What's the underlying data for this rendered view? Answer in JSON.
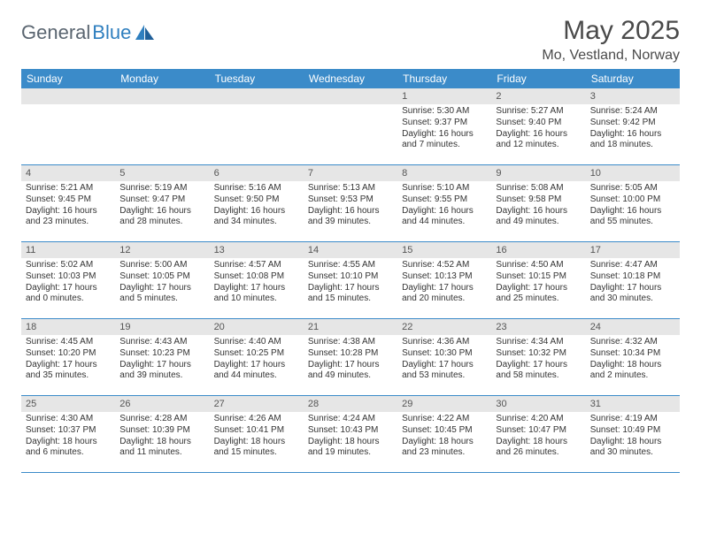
{
  "logo": {
    "text_a": "General",
    "text_b": "Blue"
  },
  "title": "May 2025",
  "location": "Mo, Vestland, Norway",
  "colors": {
    "header_bar": "#3b8bc9",
    "day_num_bg": "#e6e6e6",
    "text": "#333333",
    "logo_gray": "#5a6570",
    "logo_blue": "#2f7fbf"
  },
  "day_names": [
    "Sunday",
    "Monday",
    "Tuesday",
    "Wednesday",
    "Thursday",
    "Friday",
    "Saturday"
  ],
  "weeks": [
    [
      {
        "n": "",
        "sr": "",
        "ss": "",
        "dl": ""
      },
      {
        "n": "",
        "sr": "",
        "ss": "",
        "dl": ""
      },
      {
        "n": "",
        "sr": "",
        "ss": "",
        "dl": ""
      },
      {
        "n": "",
        "sr": "",
        "ss": "",
        "dl": ""
      },
      {
        "n": "1",
        "sr": "Sunrise: 5:30 AM",
        "ss": "Sunset: 9:37 PM",
        "dl": "Daylight: 16 hours and 7 minutes."
      },
      {
        "n": "2",
        "sr": "Sunrise: 5:27 AM",
        "ss": "Sunset: 9:40 PM",
        "dl": "Daylight: 16 hours and 12 minutes."
      },
      {
        "n": "3",
        "sr": "Sunrise: 5:24 AM",
        "ss": "Sunset: 9:42 PM",
        "dl": "Daylight: 16 hours and 18 minutes."
      }
    ],
    [
      {
        "n": "4",
        "sr": "Sunrise: 5:21 AM",
        "ss": "Sunset: 9:45 PM",
        "dl": "Daylight: 16 hours and 23 minutes."
      },
      {
        "n": "5",
        "sr": "Sunrise: 5:19 AM",
        "ss": "Sunset: 9:47 PM",
        "dl": "Daylight: 16 hours and 28 minutes."
      },
      {
        "n": "6",
        "sr": "Sunrise: 5:16 AM",
        "ss": "Sunset: 9:50 PM",
        "dl": "Daylight: 16 hours and 34 minutes."
      },
      {
        "n": "7",
        "sr": "Sunrise: 5:13 AM",
        "ss": "Sunset: 9:53 PM",
        "dl": "Daylight: 16 hours and 39 minutes."
      },
      {
        "n": "8",
        "sr": "Sunrise: 5:10 AM",
        "ss": "Sunset: 9:55 PM",
        "dl": "Daylight: 16 hours and 44 minutes."
      },
      {
        "n": "9",
        "sr": "Sunrise: 5:08 AM",
        "ss": "Sunset: 9:58 PM",
        "dl": "Daylight: 16 hours and 49 minutes."
      },
      {
        "n": "10",
        "sr": "Sunrise: 5:05 AM",
        "ss": "Sunset: 10:00 PM",
        "dl": "Daylight: 16 hours and 55 minutes."
      }
    ],
    [
      {
        "n": "11",
        "sr": "Sunrise: 5:02 AM",
        "ss": "Sunset: 10:03 PM",
        "dl": "Daylight: 17 hours and 0 minutes."
      },
      {
        "n": "12",
        "sr": "Sunrise: 5:00 AM",
        "ss": "Sunset: 10:05 PM",
        "dl": "Daylight: 17 hours and 5 minutes."
      },
      {
        "n": "13",
        "sr": "Sunrise: 4:57 AM",
        "ss": "Sunset: 10:08 PM",
        "dl": "Daylight: 17 hours and 10 minutes."
      },
      {
        "n": "14",
        "sr": "Sunrise: 4:55 AM",
        "ss": "Sunset: 10:10 PM",
        "dl": "Daylight: 17 hours and 15 minutes."
      },
      {
        "n": "15",
        "sr": "Sunrise: 4:52 AM",
        "ss": "Sunset: 10:13 PM",
        "dl": "Daylight: 17 hours and 20 minutes."
      },
      {
        "n": "16",
        "sr": "Sunrise: 4:50 AM",
        "ss": "Sunset: 10:15 PM",
        "dl": "Daylight: 17 hours and 25 minutes."
      },
      {
        "n": "17",
        "sr": "Sunrise: 4:47 AM",
        "ss": "Sunset: 10:18 PM",
        "dl": "Daylight: 17 hours and 30 minutes."
      }
    ],
    [
      {
        "n": "18",
        "sr": "Sunrise: 4:45 AM",
        "ss": "Sunset: 10:20 PM",
        "dl": "Daylight: 17 hours and 35 minutes."
      },
      {
        "n": "19",
        "sr": "Sunrise: 4:43 AM",
        "ss": "Sunset: 10:23 PM",
        "dl": "Daylight: 17 hours and 39 minutes."
      },
      {
        "n": "20",
        "sr": "Sunrise: 4:40 AM",
        "ss": "Sunset: 10:25 PM",
        "dl": "Daylight: 17 hours and 44 minutes."
      },
      {
        "n": "21",
        "sr": "Sunrise: 4:38 AM",
        "ss": "Sunset: 10:28 PM",
        "dl": "Daylight: 17 hours and 49 minutes."
      },
      {
        "n": "22",
        "sr": "Sunrise: 4:36 AM",
        "ss": "Sunset: 10:30 PM",
        "dl": "Daylight: 17 hours and 53 minutes."
      },
      {
        "n": "23",
        "sr": "Sunrise: 4:34 AM",
        "ss": "Sunset: 10:32 PM",
        "dl": "Daylight: 17 hours and 58 minutes."
      },
      {
        "n": "24",
        "sr": "Sunrise: 4:32 AM",
        "ss": "Sunset: 10:34 PM",
        "dl": "Daylight: 18 hours and 2 minutes."
      }
    ],
    [
      {
        "n": "25",
        "sr": "Sunrise: 4:30 AM",
        "ss": "Sunset: 10:37 PM",
        "dl": "Daylight: 18 hours and 6 minutes."
      },
      {
        "n": "26",
        "sr": "Sunrise: 4:28 AM",
        "ss": "Sunset: 10:39 PM",
        "dl": "Daylight: 18 hours and 11 minutes."
      },
      {
        "n": "27",
        "sr": "Sunrise: 4:26 AM",
        "ss": "Sunset: 10:41 PM",
        "dl": "Daylight: 18 hours and 15 minutes."
      },
      {
        "n": "28",
        "sr": "Sunrise: 4:24 AM",
        "ss": "Sunset: 10:43 PM",
        "dl": "Daylight: 18 hours and 19 minutes."
      },
      {
        "n": "29",
        "sr": "Sunrise: 4:22 AM",
        "ss": "Sunset: 10:45 PM",
        "dl": "Daylight: 18 hours and 23 minutes."
      },
      {
        "n": "30",
        "sr": "Sunrise: 4:20 AM",
        "ss": "Sunset: 10:47 PM",
        "dl": "Daylight: 18 hours and 26 minutes."
      },
      {
        "n": "31",
        "sr": "Sunrise: 4:19 AM",
        "ss": "Sunset: 10:49 PM",
        "dl": "Daylight: 18 hours and 30 minutes."
      }
    ]
  ]
}
